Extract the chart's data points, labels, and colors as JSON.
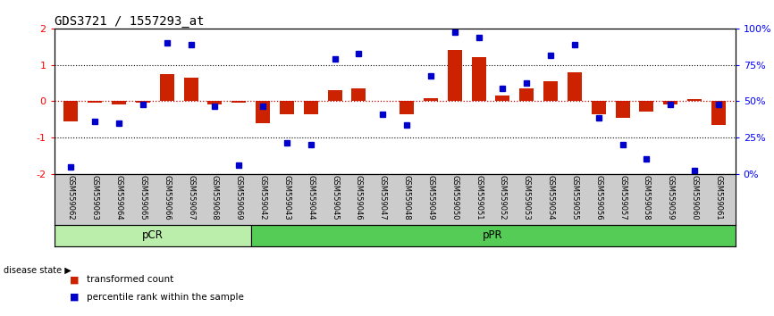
{
  "title": "GDS3721 / 1557293_at",
  "samples": [
    "GSM559062",
    "GSM559063",
    "GSM559064",
    "GSM559065",
    "GSM559066",
    "GSM559067",
    "GSM559068",
    "GSM559069",
    "GSM559042",
    "GSM559043",
    "GSM559044",
    "GSM559045",
    "GSM559046",
    "GSM559047",
    "GSM559048",
    "GSM559049",
    "GSM559050",
    "GSM559051",
    "GSM559052",
    "GSM559053",
    "GSM559054",
    "GSM559055",
    "GSM559056",
    "GSM559057",
    "GSM559058",
    "GSM559059",
    "GSM559060",
    "GSM559061"
  ],
  "bar_values": [
    -0.55,
    -0.05,
    -0.08,
    -0.05,
    0.75,
    0.65,
    -0.08,
    -0.05,
    -0.6,
    -0.35,
    -0.35,
    0.3,
    0.35,
    0.0,
    -0.35,
    0.08,
    1.4,
    1.2,
    0.15,
    0.35,
    0.55,
    0.8,
    -0.35,
    -0.45,
    -0.3,
    -0.1,
    0.05,
    -0.65
  ],
  "percentile_values": [
    -1.8,
    -0.55,
    -0.6,
    -0.1,
    1.6,
    1.55,
    -0.15,
    -1.75,
    -0.15,
    -1.15,
    -1.2,
    1.15,
    1.3,
    -0.35,
    -0.65,
    0.7,
    1.9,
    1.75,
    0.35,
    0.5,
    1.25,
    1.55,
    -0.45,
    -1.2,
    -1.6,
    -0.1,
    -1.9,
    -0.1
  ],
  "group_pcr_count": 8,
  "ylim": [
    -2,
    2
  ],
  "bar_color": "#cc2200",
  "point_color": "#0000cc",
  "zero_line_color": "#cc0000",
  "dotted_color": "#000000",
  "pcr_color": "#bbeeaa",
  "ppr_color": "#55cc55",
  "label_bg": "#cccccc",
  "bg_color": "#ffffff",
  "title_fontsize": 10,
  "tick_fontsize": 8,
  "sample_fontsize": 6
}
